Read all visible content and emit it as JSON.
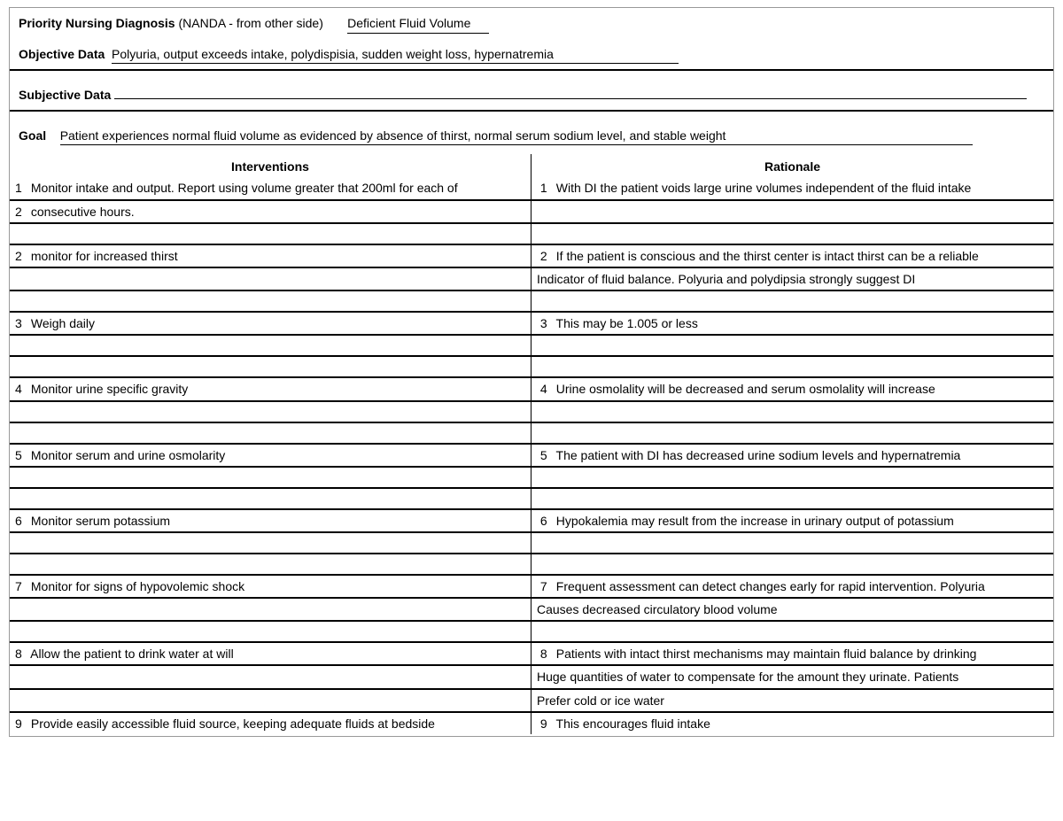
{
  "colors": {
    "border_outer": "#999999",
    "border_rule": "#000000",
    "text": "#000000",
    "background": "#ffffff"
  },
  "typography": {
    "font_family": "Arial",
    "base_size_pt": 11,
    "header_weight": "bold"
  },
  "header": {
    "diag_label": "Priority Nursing Diagnosis",
    "diag_paren": "(NANDA - from other side)",
    "diag_value": "Deficient Fluid Volume",
    "obj_label": "Objective Data",
    "obj_value": "Polyuria, output exceeds intake, polydispisia, sudden weight loss, hypernatremia",
    "subj_label": "Subjective Data",
    "subj_value": "",
    "goal_label": "Goal",
    "goal_value": "Patient experiences normal fluid volume as evidenced by absence of thirst, normal serum sodium level, and stable weight"
  },
  "columns": {
    "left": "Interventions",
    "right": "Rationale"
  },
  "rows": [
    {
      "l_num": "1",
      "l_text": "Monitor intake and output. Report using volume greater that 200ml for each of",
      "r_num": "1",
      "r_text": "With DI the patient voids large urine volumes independent of the fluid intake"
    },
    {
      "l_num": "2",
      "l_text": "consecutive hours.",
      "r_num": "",
      "r_text": ""
    },
    {
      "l_num": "",
      "l_text": "",
      "r_num": "",
      "r_text": ""
    },
    {
      "l_num": "2",
      "l_text": "monitor for increased thirst",
      "r_num": "2",
      "r_text": "If the patient is conscious and the thirst center is intact thirst can be a reliable"
    },
    {
      "l_num": "",
      "l_text": "",
      "r_num": "",
      "r_text": "Indicator of fluid balance. Polyuria and polydipsia strongly suggest DI"
    },
    {
      "l_num": "",
      "l_text": "",
      "r_num": "",
      "r_text": ""
    },
    {
      "l_num": "3",
      "l_text": "Weigh daily",
      "r_num": "3",
      "r_text": "This may be 1.005 or less"
    },
    {
      "l_num": "",
      "l_text": "",
      "r_num": "",
      "r_text": ""
    },
    {
      "l_num": "",
      "l_text": "",
      "r_num": "",
      "r_text": ""
    },
    {
      "l_num": "4",
      "l_text": "Monitor urine specific gravity",
      "r_num": "4",
      "r_text": "Urine osmolality will be decreased and serum osmolality will increase"
    },
    {
      "l_num": "",
      "l_text": "",
      "r_num": "",
      "r_text": ""
    },
    {
      "l_num": "",
      "l_text": "",
      "r_num": "",
      "r_text": ""
    },
    {
      "l_num": "5",
      "l_text": "Monitor serum and urine osmolarity",
      "r_num": "5",
      "r_text": "The patient with DI has decreased urine sodium levels and hypernatremia"
    },
    {
      "l_num": "",
      "l_text": "",
      "r_num": "",
      "r_text": ""
    },
    {
      "l_num": "",
      "l_text": "",
      "r_num": "",
      "r_text": ""
    },
    {
      "l_num": "6",
      "l_text": "Monitor serum potassium",
      "r_num": "6",
      "r_text": "Hypokalemia may result from the increase in urinary output of potassium"
    },
    {
      "l_num": "",
      "l_text": "",
      "r_num": "",
      "r_text": ""
    },
    {
      "l_num": "",
      "l_text": "",
      "r_num": "",
      "r_text": ""
    },
    {
      "l_num": "7",
      "l_text": "Monitor for signs of hypovolemic shock",
      "r_num": "7",
      "r_text": "Frequent assessment can detect changes early for rapid intervention. Polyuria"
    },
    {
      "l_num": "",
      "l_text": "",
      "r_num": "",
      "r_text": "Causes decreased circulatory blood volume"
    },
    {
      "l_num": "",
      "l_text": "",
      "r_num": "",
      "r_text": ""
    },
    {
      "l_num": "8",
      "l_text": "Allow the patient to drink water at will",
      "r_num": "8",
      "r_text": "Patients with intact thirst mechanisms may maintain fluid balance by drinking"
    },
    {
      "l_num": "",
      "l_text": "",
      "r_num": "",
      "r_text": "Huge quantities of water to compensate for the amount they urinate. Patients"
    },
    {
      "l_num": "",
      "l_text": "",
      "r_num": "",
      "r_text": "Prefer cold or ice water"
    },
    {
      "l_num": "9",
      "l_text": "Provide easily accessible fluid source, keeping adequate fluids at bedside",
      "r_num": "9",
      "r_text": "This encourages fluid intake"
    }
  ]
}
